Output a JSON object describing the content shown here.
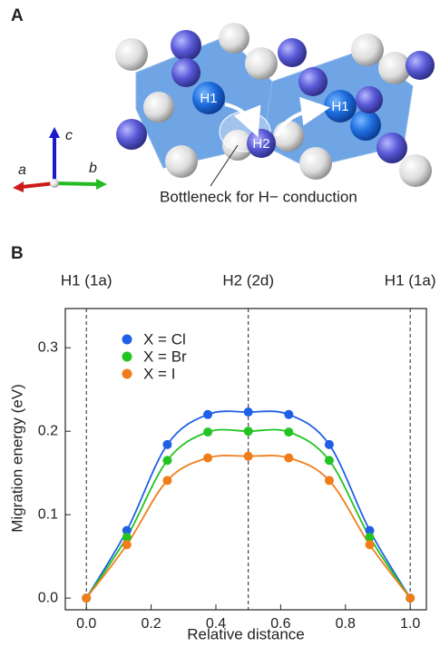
{
  "panel_a": {
    "label": "A",
    "axes": {
      "a": "a",
      "b": "b",
      "c": "c"
    },
    "atoms": [
      "H1",
      "H2",
      "H1"
    ],
    "annotation": "Bottleneck for H− conduction"
  },
  "chart_data": {
    "type": "line",
    "panel_label": "B",
    "x_label": "Relative distance",
    "y_label": "Migration energy (eV)",
    "x": [
      0,
      0.125,
      0.25,
      0.375,
      0.5,
      0.625,
      0.75,
      0.875,
      1.0
    ],
    "series": [
      {
        "name": "X = Cl",
        "color": "#1f5fe6",
        "values": [
          0,
          0.081,
          0.184,
          0.22,
          0.223,
          0.22,
          0.184,
          0.081,
          0
        ]
      },
      {
        "name": "X = Br",
        "color": "#22c322",
        "values": [
          0,
          0.073,
          0.165,
          0.199,
          0.2,
          0.199,
          0.165,
          0.073,
          0
        ]
      },
      {
        "name": "X = I",
        "color": "#f07d1a",
        "values": [
          0,
          0.064,
          0.141,
          0.168,
          0.17,
          0.168,
          0.141,
          0.064,
          0
        ]
      }
    ],
    "site_markers": [
      {
        "x": 0,
        "label": "H1 (1a)"
      },
      {
        "x": 0.5,
        "label": "H2 (2d)"
      },
      {
        "x": 1.0,
        "label": "H1 (1a)"
      }
    ],
    "xlim": [
      -0.065,
      1.05
    ],
    "ylim": [
      -0.014,
      0.347
    ],
    "xticks": [
      {
        "value": 0,
        "label": "0.0"
      },
      0.2,
      0.4,
      0.6,
      0.8,
      {
        "value": 1,
        "label": "1.0"
      }
    ],
    "yticks": [
      {
        "value": 0,
        "label": "0.0"
      },
      0.1,
      0.2,
      0.3
    ],
    "legend": "upper left",
    "smooth": true
  }
}
